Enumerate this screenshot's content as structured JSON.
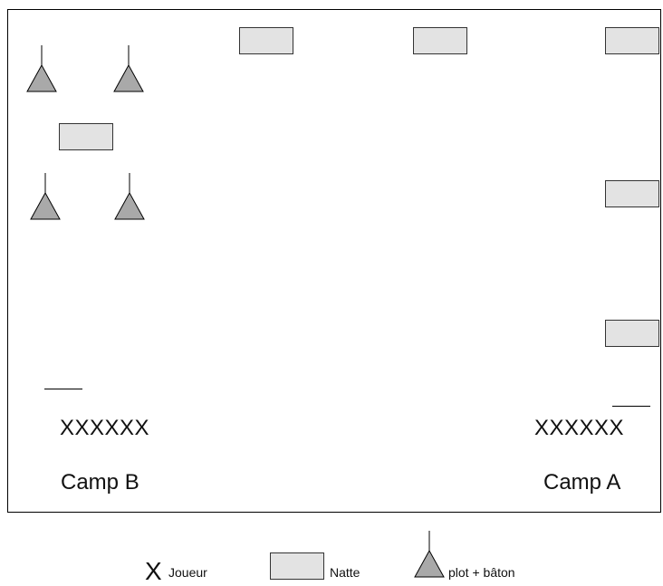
{
  "field": {
    "left_team": {
      "players": "XXXXXX",
      "label": "Camp B"
    },
    "right_team": {
      "players": "XXXXXX",
      "label": "Camp A"
    }
  },
  "legend": {
    "player_symbol": "X",
    "player_label": "Joueur",
    "mat_label": "Natte",
    "cone_label": "plot + bâton"
  },
  "colors": {
    "mat_fill": "#e3e3e3",
    "cone_fill": "#a9a9a9",
    "stroke": "#000000"
  }
}
